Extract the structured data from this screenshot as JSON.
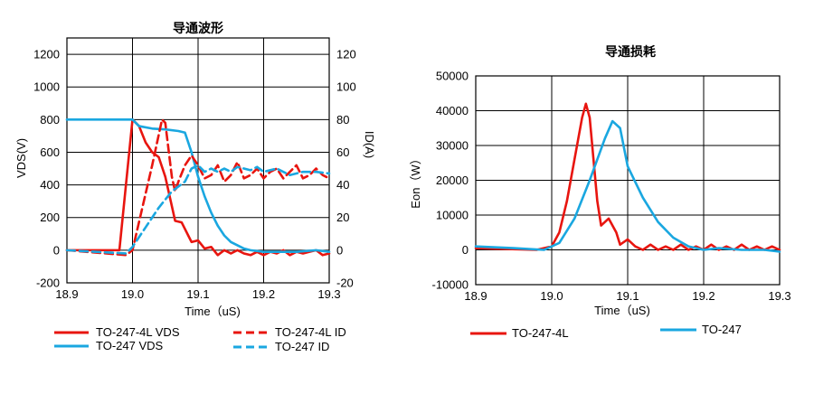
{
  "chart_data": [
    {
      "type": "line",
      "title": "导通波形",
      "xlabel": "Time（uS)",
      "ylabel": "VDS(V)",
      "y2label": "ID(A)",
      "xlim": [
        18.9,
        19.3
      ],
      "ylim": [
        -200,
        1300
      ],
      "y2lim": [
        -20,
        130
      ],
      "x_ticks": [
        "18.9",
        "19.0",
        "19.1",
        "19.2",
        "19.3"
      ],
      "y_ticks": [
        "-200",
        "0",
        "200",
        "400",
        "600",
        "800",
        "1000",
        "1200"
      ],
      "y2_ticks": [
        "-20",
        "0",
        "20",
        "40",
        "60",
        "80",
        "100",
        "120"
      ],
      "grid": true,
      "legend_position": "bottom",
      "series": [
        {
          "name": "TO-247-4L VDS",
          "axis": "left",
          "color": "#e8150f",
          "style": "solid",
          "points": [
            [
              18.9,
              0
            ],
            [
              18.98,
              0
            ],
            [
              19.0,
              800
            ],
            [
              19.01,
              760
            ],
            [
              19.02,
              660
            ],
            [
              19.03,
              600
            ],
            [
              19.04,
              570
            ],
            [
              19.05,
              450
            ],
            [
              19.06,
              270
            ],
            [
              19.065,
              180
            ],
            [
              19.075,
              170
            ],
            [
              19.085,
              90
            ],
            [
              19.09,
              50
            ],
            [
              19.1,
              60
            ],
            [
              19.11,
              10
            ],
            [
              19.12,
              20
            ],
            [
              19.13,
              -30
            ],
            [
              19.14,
              0
            ],
            [
              19.15,
              -20
            ],
            [
              19.16,
              0
            ],
            [
              19.17,
              -20
            ],
            [
              19.18,
              -30
            ],
            [
              19.19,
              -10
            ],
            [
              19.2,
              -30
            ],
            [
              19.21,
              -10
            ],
            [
              19.22,
              -20
            ],
            [
              19.23,
              0
            ],
            [
              19.24,
              -30
            ],
            [
              19.25,
              -10
            ],
            [
              19.26,
              -20
            ],
            [
              19.27,
              -10
            ],
            [
              19.28,
              0
            ],
            [
              19.29,
              -30
            ],
            [
              19.3,
              -20
            ]
          ]
        },
        {
          "name": "TO-247 VDS",
          "axis": "left",
          "color": "#1aa7e0",
          "style": "solid",
          "points": [
            [
              18.9,
              800
            ],
            [
              19.0,
              800
            ],
            [
              19.01,
              760
            ],
            [
              19.03,
              745
            ],
            [
              19.05,
              740
            ],
            [
              19.07,
              730
            ],
            [
              19.08,
              720
            ],
            [
              19.09,
              600
            ],
            [
              19.1,
              450
            ],
            [
              19.11,
              330
            ],
            [
              19.12,
              230
            ],
            [
              19.13,
              150
            ],
            [
              19.14,
              90
            ],
            [
              19.15,
              50
            ],
            [
              19.16,
              30
            ],
            [
              19.17,
              10
            ],
            [
              19.18,
              0
            ],
            [
              19.2,
              -10
            ],
            [
              19.22,
              -10
            ],
            [
              19.25,
              -10
            ],
            [
              19.28,
              0
            ],
            [
              19.3,
              -10
            ]
          ]
        },
        {
          "name": "TO-247-4L ID",
          "axis": "right",
          "color": "#e8150f",
          "style": "dashed",
          "points": [
            [
              18.9,
              0
            ],
            [
              18.99,
              -3
            ],
            [
              19.0,
              0
            ],
            [
              19.03,
              52
            ],
            [
              19.045,
              80
            ],
            [
              19.05,
              78
            ],
            [
              19.06,
              45
            ],
            [
              19.065,
              36
            ],
            [
              19.07,
              42
            ],
            [
              19.08,
              52
            ],
            [
              19.09,
              58
            ],
            [
              19.1,
              52
            ],
            [
              19.11,
              44
            ],
            [
              19.12,
              46
            ],
            [
              19.13,
              52
            ],
            [
              19.14,
              42
            ],
            [
              19.15,
              46
            ],
            [
              19.16,
              54
            ],
            [
              19.17,
              44
            ],
            [
              19.18,
              46
            ],
            [
              19.19,
              50
            ],
            [
              19.2,
              44
            ],
            [
              19.21,
              48
            ],
            [
              19.22,
              50
            ],
            [
              19.23,
              44
            ],
            [
              19.24,
              48
            ],
            [
              19.25,
              52
            ],
            [
              19.26,
              44
            ],
            [
              19.27,
              46
            ],
            [
              19.28,
              50
            ],
            [
              19.29,
              46
            ],
            [
              19.3,
              44
            ]
          ]
        },
        {
          "name": "TO-247 ID",
          "axis": "right",
          "color": "#1aa7e0",
          "style": "dashed",
          "points": [
            [
              18.9,
              0
            ],
            [
              18.99,
              -2
            ],
            [
              19.0,
              2
            ],
            [
              19.02,
              14
            ],
            [
              19.04,
              26
            ],
            [
              19.06,
              36
            ],
            [
              19.08,
              42
            ],
            [
              19.09,
              50
            ],
            [
              19.1,
              52
            ],
            [
              19.11,
              48
            ],
            [
              19.12,
              50
            ],
            [
              19.13,
              48
            ],
            [
              19.14,
              50
            ],
            [
              19.15,
              48
            ],
            [
              19.16,
              51
            ],
            [
              19.17,
              50
            ],
            [
              19.18,
              49
            ],
            [
              19.19,
              51
            ],
            [
              19.2,
              48
            ],
            [
              19.22,
              50
            ],
            [
              19.24,
              46
            ],
            [
              19.26,
              48
            ],
            [
              19.28,
              48
            ],
            [
              19.3,
              47
            ]
          ]
        }
      ]
    },
    {
      "type": "line",
      "title": "导通损耗",
      "xlabel": "Time（uS)",
      "ylabel": "Eon（W）",
      "xlim": [
        18.9,
        19.3
      ],
      "ylim": [
        -10000,
        50000
      ],
      "x_ticks": [
        "18.9",
        "19.0",
        "19.1",
        "19.2",
        "19.3"
      ],
      "y_ticks": [
        "-10000",
        "0",
        "10000",
        "20000",
        "30000",
        "40000",
        "50000"
      ],
      "grid": true,
      "legend_position": "bottom",
      "series": [
        {
          "name": "TO-247-4L",
          "color": "#e8150f",
          "style": "solid",
          "points": [
            [
              18.9,
              500
            ],
            [
              18.98,
              0
            ],
            [
              19.0,
              1000
            ],
            [
              19.01,
              5000
            ],
            [
              19.02,
              14000
            ],
            [
              19.03,
              26000
            ],
            [
              19.04,
              38000
            ],
            [
              19.045,
              42000
            ],
            [
              19.05,
              38000
            ],
            [
              19.06,
              14000
            ],
            [
              19.065,
              7000
            ],
            [
              19.075,
              9000
            ],
            [
              19.085,
              5000
            ],
            [
              19.09,
              1500
            ],
            [
              19.1,
              3000
            ],
            [
              19.11,
              1000
            ],
            [
              19.12,
              0
            ],
            [
              19.13,
              1500
            ],
            [
              19.14,
              0
            ],
            [
              19.15,
              1000
            ],
            [
              19.16,
              0
            ],
            [
              19.17,
              1500
            ],
            [
              19.18,
              0
            ],
            [
              19.19,
              1000
            ],
            [
              19.2,
              0
            ],
            [
              19.21,
              1500
            ],
            [
              19.22,
              0
            ],
            [
              19.23,
              1000
            ],
            [
              19.24,
              0
            ],
            [
              19.25,
              1500
            ],
            [
              19.26,
              0
            ],
            [
              19.27,
              1000
            ],
            [
              19.28,
              0
            ],
            [
              19.29,
              1000
            ],
            [
              19.3,
              0
            ]
          ]
        },
        {
          "name": "TO-247",
          "color": "#1aa7e0",
          "style": "solid",
          "points": [
            [
              18.9,
              1000
            ],
            [
              18.95,
              500
            ],
            [
              18.99,
              0
            ],
            [
              19.01,
              2000
            ],
            [
              19.03,
              9000
            ],
            [
              19.05,
              20000
            ],
            [
              19.07,
              32000
            ],
            [
              19.08,
              37000
            ],
            [
              19.09,
              35000
            ],
            [
              19.1,
              24000
            ],
            [
              19.12,
              15000
            ],
            [
              19.14,
              8000
            ],
            [
              19.16,
              3500
            ],
            [
              19.18,
              1000
            ],
            [
              19.2,
              0
            ],
            [
              19.22,
              500
            ],
            [
              19.25,
              0
            ],
            [
              19.28,
              0
            ],
            [
              19.3,
              -500
            ]
          ]
        }
      ]
    }
  ]
}
